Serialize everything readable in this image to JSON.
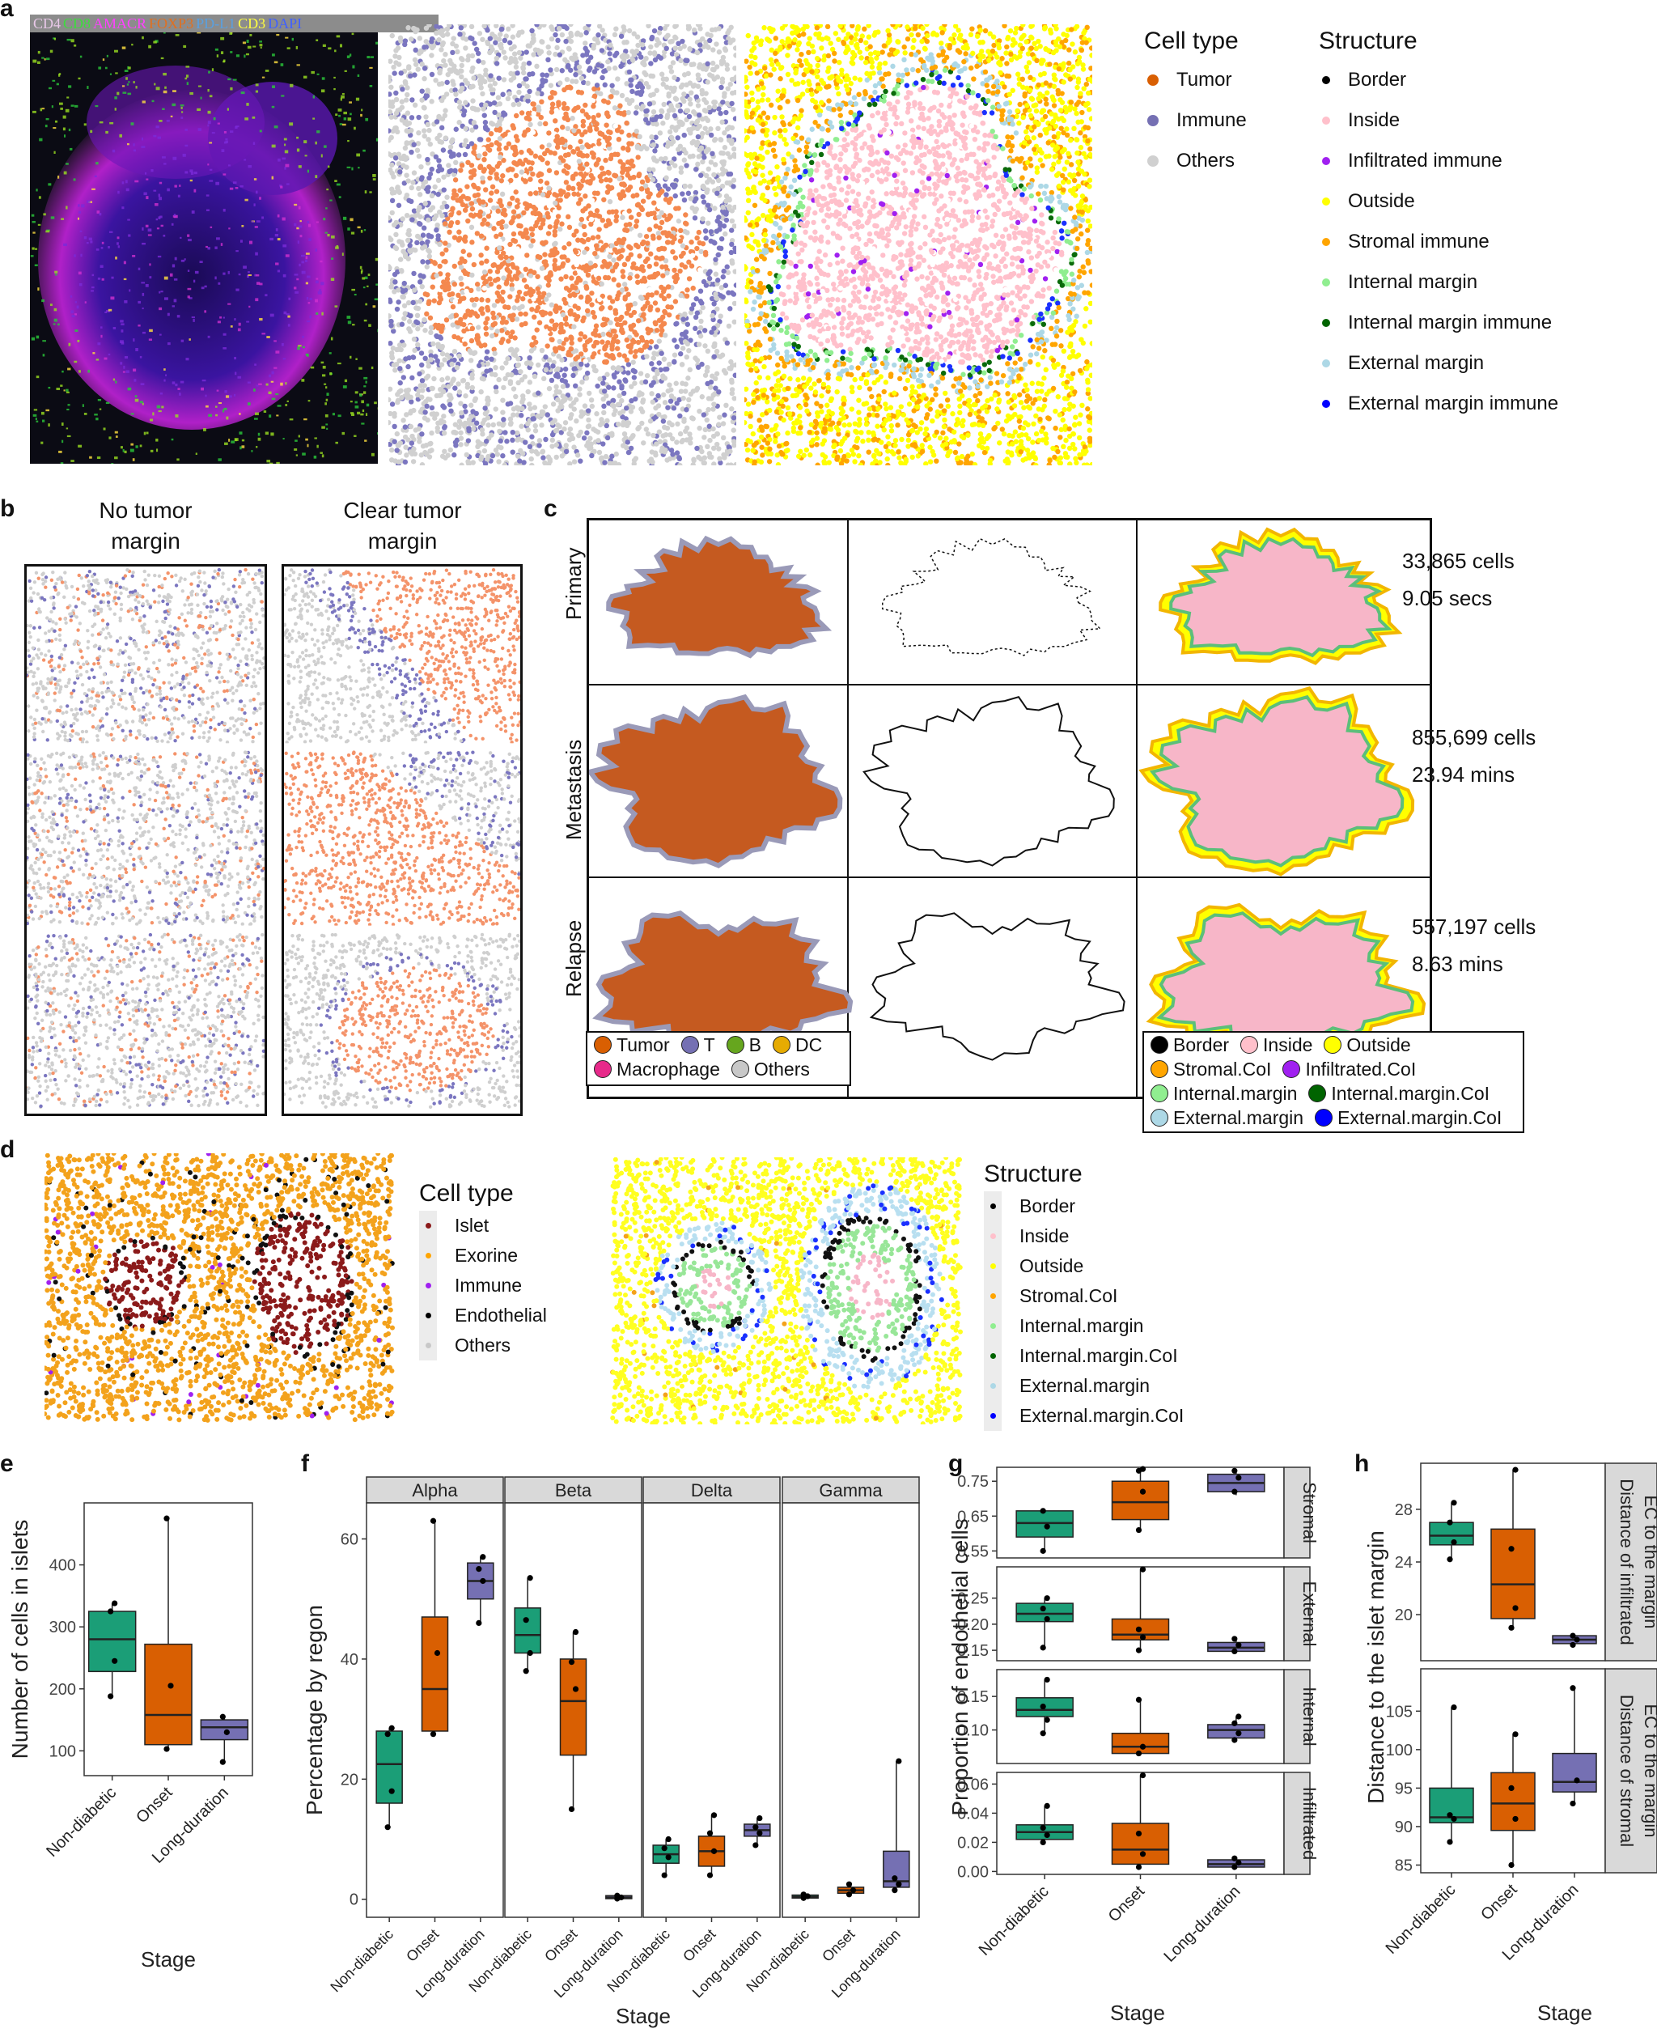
{
  "panel_letters": {
    "a": "a",
    "b": "b",
    "c": "c",
    "d": "d",
    "e": "e",
    "f": "f",
    "g": "g",
    "h": "h"
  },
  "panel_a": {
    "channels": [
      {
        "label": "CD4",
        "color": "#e8c8e8"
      },
      {
        "label": "CD8",
        "color": "#3ddc3d"
      },
      {
        "label": "AMACR",
        "color": "#ff40ff"
      },
      {
        "label": "FOXP3",
        "color": "#e07020"
      },
      {
        "label": "PD-L1",
        "color": "#5aa0e0"
      },
      {
        "label": "CD3",
        "color": "#ffff40"
      },
      {
        "label": "DAPI",
        "color": "#4060ff"
      }
    ],
    "celltype_legend": {
      "title": "Cell type",
      "items": [
        {
          "label": "Tumor",
          "color": "#d95f02"
        },
        {
          "label": "Immune",
          "color": "#7570b3"
        },
        {
          "label": "Others",
          "color": "#d0d0d0"
        }
      ]
    },
    "structure_legend": {
      "title": "Structure",
      "items": [
        {
          "label": "Border",
          "color": "#000000"
        },
        {
          "label": "Inside",
          "color": "#ffc0cb"
        },
        {
          "label": "Infiltrated immune",
          "color": "#a020f0"
        },
        {
          "label": "Outside",
          "color": "#ffff00"
        },
        {
          "label": "Stromal immune",
          "color": "#ffa500"
        },
        {
          "label": "Internal margin",
          "color": "#90ee90"
        },
        {
          "label": "Internal margin immune",
          "color": "#006400"
        },
        {
          "label": "External margin",
          "color": "#add8e6"
        },
        {
          "label": "External margin immune",
          "color": "#0000ff"
        }
      ]
    }
  },
  "panel_b": {
    "col1": [
      "No tumor",
      "margin"
    ],
    "col2": [
      "Clear tumor",
      "margin"
    ]
  },
  "panel_c": {
    "rows": [
      {
        "label": "Primary",
        "cells": "33,865 cells",
        "time": "9.05 secs"
      },
      {
        "label": "Metastasis",
        "cells": "855,699 cells",
        "time": "23.94 mins"
      },
      {
        "label": "Relapse",
        "cells": "557,197 cells",
        "time": "8.63 mins"
      }
    ],
    "celltype_legend": [
      {
        "label": "Tumor",
        "color": "#d95f02"
      },
      {
        "label": "T",
        "color": "#7570b3"
      },
      {
        "label": "B",
        "color": "#66a61e"
      },
      {
        "label": "DC",
        "color": "#e6ab02"
      },
      {
        "label": "Macrophage",
        "color": "#e7298a"
      },
      {
        "label": "Others",
        "color": "#c8c8c8"
      }
    ],
    "structure_legend": [
      {
        "label": "Border",
        "color": "#000000"
      },
      {
        "label": "Inside",
        "color": "#ffc0cb"
      },
      {
        "label": "Outside",
        "color": "#ffff00"
      },
      {
        "label": "Stromal.CoI",
        "color": "#ffa500"
      },
      {
        "label": "Infiltrated.CoI",
        "color": "#a020f0"
      },
      {
        "label": "Internal.margin",
        "color": "#90ee90"
      },
      {
        "label": "Internal.margin.CoI",
        "color": "#006400"
      },
      {
        "label": "External.margin",
        "color": "#add8e6"
      },
      {
        "label": "External.margin.CoI",
        "color": "#0000ff"
      }
    ]
  },
  "panel_d": {
    "celltype_legend": {
      "title": "Cell type",
      "items": [
        {
          "label": "Islet",
          "color": "#8b1a1a"
        },
        {
          "label": "Exorine",
          "color": "#ffa500"
        },
        {
          "label": "Immune",
          "color": "#a020f0"
        },
        {
          "label": "Endothelial",
          "color": "#000000"
        },
        {
          "label": "Others",
          "color": "#c8c8c8"
        }
      ]
    },
    "structure_legend": {
      "title": "Structure",
      "items": [
        {
          "label": "Border",
          "color": "#000000"
        },
        {
          "label": "Inside",
          "color": "#ffc0cb"
        },
        {
          "label": "Outside",
          "color": "#ffff00"
        },
        {
          "label": "Stromal.CoI",
          "color": "#ffa500"
        },
        {
          "label": "Internal.margin",
          "color": "#90ee90"
        },
        {
          "label": "Internal.margin.CoI",
          "color": "#006400"
        },
        {
          "label": "External.margin",
          "color": "#add8e6"
        },
        {
          "label": "External.margin.CoI",
          "color": "#0000ff"
        }
      ]
    }
  },
  "stage_colors": {
    "Non-diabetic": "#1b9e77",
    "Onset": "#d95f02",
    "Long-duration": "#7570b3"
  },
  "chart_data": [
    {
      "id": "e",
      "type": "box",
      "xlabel": "Stage",
      "ylabel": "Number of cells in islets",
      "categories": [
        "Non-diabetic",
        "Onset",
        "Long-duration"
      ],
      "ylim": [
        60,
        500
      ],
      "yticks": [
        100,
        200,
        300,
        400
      ],
      "boxes": [
        {
          "q1": 228,
          "median": 280,
          "q3": 325,
          "min": 188,
          "max": 338,
          "points": [
            188,
            245,
            325,
            338
          ]
        },
        {
          "q1": 110,
          "median": 158,
          "q3": 272,
          "min": 103,
          "max": 475,
          "points": [
            103,
            205,
            475
          ]
        },
        {
          "q1": 118,
          "median": 138,
          "q3": 150,
          "min": 82,
          "max": 155,
          "points": [
            82,
            130,
            155
          ]
        }
      ]
    },
    {
      "id": "f",
      "type": "box",
      "xlabel": "Stage",
      "ylabel": "Percentage by regon",
      "facets": [
        "Alpha",
        "Beta",
        "Delta",
        "Gamma"
      ],
      "categories": [
        "Non-diabetic",
        "Onset",
        "Long-duration"
      ],
      "ylim": [
        -3,
        66
      ],
      "yticks": [
        0,
        20,
        40,
        60
      ],
      "boxes": [
        [
          {
            "q1": 16,
            "median": 22.5,
            "q3": 28,
            "min": 12,
            "max": 28.5,
            "points": [
              12,
              18,
              27.5,
              28.5
            ]
          },
          {
            "q1": 28,
            "median": 35,
            "q3": 47,
            "min": 27.5,
            "max": 63,
            "points": [
              27.5,
              41,
              63
            ]
          },
          {
            "q1": 50,
            "median": 53,
            "q3": 56,
            "min": 46,
            "max": 57,
            "points": [
              46,
              53,
              55,
              57
            ]
          }
        ],
        [
          {
            "q1": 41,
            "median": 44,
            "q3": 48.5,
            "min": 38,
            "max": 53.5,
            "points": [
              38,
              41,
              46.5,
              53.5
            ]
          },
          {
            "q1": 24,
            "median": 33,
            "q3": 40,
            "min": 15,
            "max": 44.5,
            "points": [
              15,
              35,
              39.5,
              44.5
            ]
          },
          {
            "q1": 0.1,
            "median": 0.3,
            "q3": 0.6,
            "min": 0,
            "max": 0.8,
            "points": [
              0.1,
              0.3,
              0.6
            ]
          }
        ],
        [
          {
            "q1": 6,
            "median": 7.5,
            "q3": 9,
            "min": 4,
            "max": 10,
            "points": [
              4,
              7,
              8.5,
              10
            ]
          },
          {
            "q1": 5.5,
            "median": 8,
            "q3": 10.5,
            "min": 4,
            "max": 14,
            "points": [
              4,
              8,
              11,
              14
            ]
          },
          {
            "q1": 10.5,
            "median": 11.5,
            "q3": 12.5,
            "min": 9,
            "max": 13.5,
            "points": [
              9,
              11,
              12,
              13.5
            ]
          }
        ],
        [
          {
            "q1": 0.2,
            "median": 0.4,
            "q3": 0.7,
            "min": 0.1,
            "max": 0.8,
            "points": [
              0.2,
              0.5,
              0.8
            ]
          },
          {
            "q1": 1,
            "median": 1.5,
            "q3": 2,
            "min": 0.5,
            "max": 2.5,
            "points": [
              0.8,
              1.5,
              2.5
            ]
          },
          {
            "q1": 2,
            "median": 3,
            "q3": 8,
            "min": 1.5,
            "max": 23,
            "points": [
              1.5,
              2.5,
              3.5,
              23
            ]
          }
        ]
      ]
    },
    {
      "id": "g",
      "type": "box",
      "xlabel": "Stage",
      "ylabel": "Proportion of endothelial cells",
      "facets": [
        "Stromal",
        "External",
        "Internal",
        "Infiltrated"
      ],
      "categories": [
        "Non-diabetic",
        "Onset",
        "Long-duration"
      ],
      "facet_ylim": [
        [
          0.53,
          0.79
        ],
        [
          0.13,
          0.31
        ],
        [
          0.05,
          0.19
        ],
        [
          -0.002,
          0.068
        ]
      ],
      "facet_yticks": [
        [
          0.55,
          0.65,
          0.75
        ],
        [
          0.15,
          0.2,
          0.25
        ],
        [
          0.1,
          0.15
        ],
        [
          0.0,
          0.02,
          0.04,
          0.06
        ]
      ],
      "facet_ytick_labels": [
        [
          "0.55",
          "0.65",
          "0.75"
        ],
        [
          "0.15",
          "0.20",
          "0.25"
        ],
        [
          "0.10",
          "0.15"
        ],
        [
          "0.00",
          "0.02",
          "0.04",
          "0.06"
        ]
      ],
      "boxes": [
        [
          {
            "q1": 0.59,
            "median": 0.63,
            "q3": 0.665,
            "min": 0.55,
            "max": 0.67,
            "points": [
              0.55,
              0.62,
              0.665
            ]
          },
          {
            "q1": 0.64,
            "median": 0.69,
            "q3": 0.75,
            "min": 0.61,
            "max": 0.785,
            "points": [
              0.61,
              0.72,
              0.78,
              0.785
            ]
          },
          {
            "q1": 0.72,
            "median": 0.745,
            "q3": 0.77,
            "min": 0.71,
            "max": 0.78,
            "points": [
              0.72,
              0.76,
              0.78
            ]
          }
        ],
        [
          {
            "q1": 0.205,
            "median": 0.22,
            "q3": 0.24,
            "min": 0.155,
            "max": 0.25,
            "points": [
              0.155,
              0.21,
              0.23,
              0.25
            ]
          },
          {
            "q1": 0.17,
            "median": 0.18,
            "q3": 0.21,
            "min": 0.15,
            "max": 0.305,
            "points": [
              0.15,
              0.175,
              0.19,
              0.305
            ]
          },
          {
            "q1": 0.148,
            "median": 0.155,
            "q3": 0.165,
            "min": 0.145,
            "max": 0.172,
            "points": [
              0.148,
              0.16,
              0.172
            ]
          }
        ],
        [
          {
            "q1": 0.12,
            "median": 0.13,
            "q3": 0.148,
            "min": 0.095,
            "max": 0.175,
            "points": [
              0.095,
              0.115,
              0.135,
              0.175
            ]
          },
          {
            "q1": 0.065,
            "median": 0.075,
            "q3": 0.095,
            "min": 0.063,
            "max": 0.145,
            "points": [
              0.065,
              0.075,
              0.145
            ]
          },
          {
            "q1": 0.088,
            "median": 0.1,
            "q3": 0.108,
            "min": 0.082,
            "max": 0.12,
            "points": [
              0.085,
              0.095,
              0.11,
              0.12
            ]
          }
        ],
        [
          {
            "q1": 0.022,
            "median": 0.027,
            "q3": 0.032,
            "min": 0.02,
            "max": 0.045,
            "points": [
              0.02,
              0.025,
              0.03,
              0.045
            ]
          },
          {
            "q1": 0.005,
            "median": 0.015,
            "q3": 0.033,
            "min": 0.003,
            "max": 0.066,
            "points": [
              0.003,
              0.012,
              0.026,
              0.066
            ]
          },
          {
            "q1": 0.003,
            "median": 0.005,
            "q3": 0.008,
            "min": 0.002,
            "max": 0.009,
            "points": [
              0.003,
              0.006,
              0.009
            ]
          }
        ]
      ]
    },
    {
      "id": "h",
      "type": "box",
      "xlabel": "Stage",
      "ylabel": "Distance to the islet margin",
      "facets": [
        "Distance of infiltrated EC to the margin",
        "Distance of stromal EC to the margin"
      ],
      "facet_strips": [
        [
          "Distance of infiltrated",
          "EC to the margin"
        ],
        [
          "Distance of stromal",
          "EC to the margin"
        ]
      ],
      "categories": [
        "Non-diabetic",
        "Onset",
        "Long-duration"
      ],
      "facet_ylim": [
        [
          16.5,
          31.5
        ],
        [
          84,
          110.5
        ]
      ],
      "facet_yticks": [
        [
          20,
          24,
          28
        ],
        [
          85,
          90,
          95,
          100,
          105
        ]
      ],
      "boxes": [
        [
          {
            "q1": 25.3,
            "median": 26,
            "q3": 27,
            "min": 24.2,
            "max": 28.5,
            "points": [
              24.2,
              25.5,
              27,
              28.5
            ]
          },
          {
            "q1": 19.7,
            "median": 22.3,
            "q3": 26.5,
            "min": 19,
            "max": 31,
            "points": [
              19,
              20.5,
              25,
              31
            ]
          },
          {
            "q1": 17.8,
            "median": 18.1,
            "q3": 18.4,
            "min": 17.6,
            "max": 18.5,
            "points": [
              17.7,
              18.1,
              18.4
            ]
          }
        ],
        [
          {
            "q1": 90.5,
            "median": 91.2,
            "q3": 95,
            "min": 88,
            "max": 105.5,
            "points": [
              88,
              91,
              91.5,
              105.5
            ]
          },
          {
            "q1": 89.5,
            "median": 93,
            "q3": 97,
            "min": 85,
            "max": 102,
            "points": [
              85,
              91,
              95,
              102
            ]
          },
          {
            "q1": 94.5,
            "median": 95.8,
            "q3": 99.5,
            "min": 93,
            "max": 108,
            "points": [
              93,
              96,
              108
            ]
          }
        ]
      ]
    }
  ]
}
